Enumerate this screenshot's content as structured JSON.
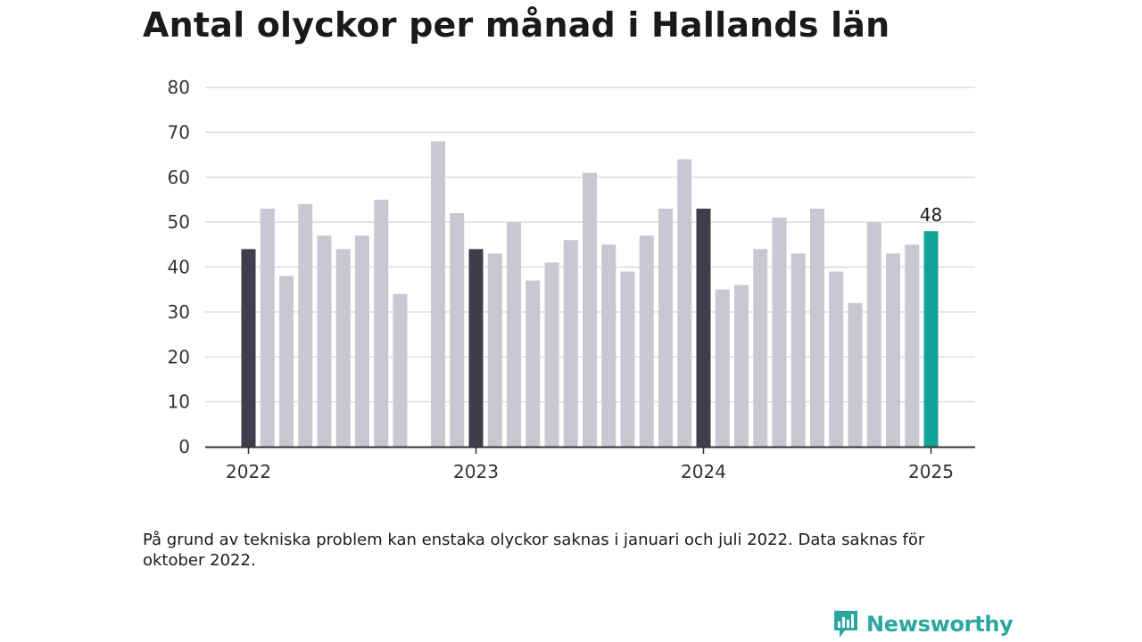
{
  "title": "Antal olyckor per månad i Hallands län",
  "footnote": "På grund av tekniska problem kan enstaka olyckor saknas i januari och juli 2022. Data saknas för oktober 2022.",
  "brand": {
    "name": "Newsworthy",
    "icon": "newsworthy-logo-icon"
  },
  "colors": {
    "january": "#3f3e4d",
    "regular": "#c8c7d2",
    "latest": "#12a39a",
    "grid": "#dcdcdc",
    "axis": "#333333",
    "brand": "#2aa8a0"
  },
  "chart_data": {
    "type": "bar",
    "title": "Antal olyckor per månad i Hallands län",
    "xlabel": "",
    "ylabel": "",
    "ylim": [
      0,
      80
    ],
    "yticks": [
      0,
      10,
      20,
      30,
      40,
      50,
      60,
      70,
      80
    ],
    "xtick_labels": [
      {
        "label": "2022",
        "month": "2022-01"
      },
      {
        "label": "2023",
        "month": "2023-01"
      },
      {
        "label": "2024",
        "month": "2024-01"
      },
      {
        "label": "2025",
        "month": "2025-01"
      }
    ],
    "grid": true,
    "legend": "none",
    "categories": [
      "2022-01",
      "2022-02",
      "2022-03",
      "2022-04",
      "2022-05",
      "2022-06",
      "2022-07",
      "2022-08",
      "2022-09",
      "2022-10",
      "2022-11",
      "2022-12",
      "2023-01",
      "2023-02",
      "2023-03",
      "2023-04",
      "2023-05",
      "2023-06",
      "2023-07",
      "2023-08",
      "2023-09",
      "2023-10",
      "2023-11",
      "2023-12",
      "2024-01",
      "2024-02",
      "2024-03",
      "2024-04",
      "2024-05",
      "2024-06",
      "2024-07",
      "2024-08",
      "2024-09",
      "2024-10",
      "2024-11",
      "2024-12",
      "2025-01"
    ],
    "values": [
      44,
      53,
      38,
      54,
      47,
      44,
      47,
      55,
      34,
      null,
      68,
      52,
      44,
      43,
      50,
      37,
      41,
      46,
      61,
      45,
      39,
      47,
      53,
      64,
      53,
      35,
      36,
      44,
      51,
      43,
      53,
      39,
      32,
      50,
      43,
      45,
      48
    ],
    "highlight": {
      "january": [
        "2022-01",
        "2023-01",
        "2024-01"
      ],
      "latest": "2025-01"
    },
    "annotations": [
      {
        "month": "2025-01",
        "text": "48"
      }
    ]
  }
}
